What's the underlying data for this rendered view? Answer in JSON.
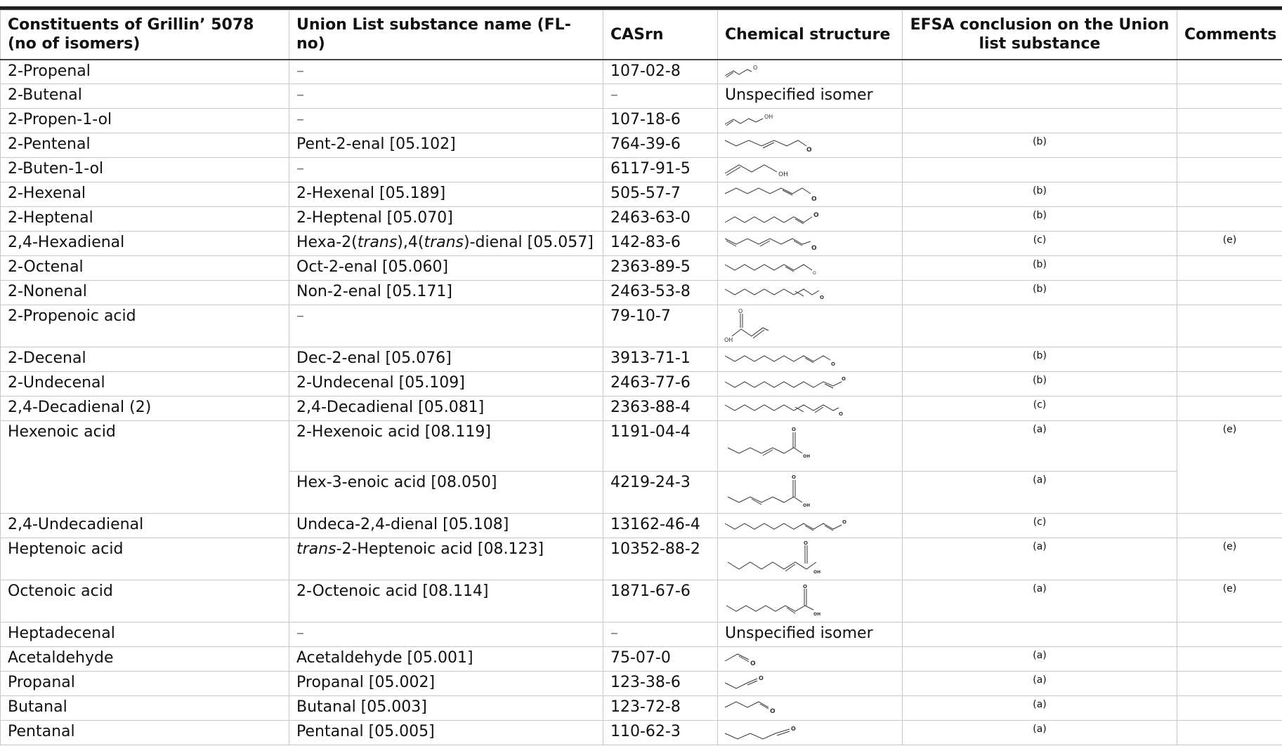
{
  "header": {
    "constituent": "Constituents of Grillin’ 5078 (no of isomers)",
    "union_name": "Union List substance name (FL-no)",
    "casrn": "CASrn",
    "structure": "Chemical structure",
    "efsa": "EFSA conclusion on the Union list substance",
    "comments": "Comments"
  },
  "rows": [
    {
      "constituent": "2-Propenal",
      "union_name": "–",
      "casrn": "107-02-8",
      "structure_text": "",
      "efsa": "",
      "comment": ""
    },
    {
      "constituent": "2-Butenal",
      "union_name": "–",
      "casrn": "–",
      "structure_text": "Unspecified isomer",
      "efsa": "",
      "comment": ""
    },
    {
      "constituent": "2-Propen-1-ol",
      "union_name": "–",
      "casrn": "107-18-6",
      "structure_text": "",
      "efsa": "",
      "comment": ""
    },
    {
      "constituent": "2-Pentenal",
      "union_name": "Pent-2-enal [05.102]",
      "casrn": "764-39-6",
      "structure_text": "",
      "efsa": "(b)",
      "comment": ""
    },
    {
      "constituent": "2-Buten-1-ol",
      "union_name": "–",
      "casrn": "6117-91-5",
      "structure_text": "",
      "efsa": "",
      "comment": ""
    },
    {
      "constituent": "2-Hexenal",
      "union_name": "2-Hexenal [05.189]",
      "casrn": "505-57-7",
      "structure_text": "",
      "efsa": "(b)",
      "comment": ""
    },
    {
      "constituent": "2-Heptenal",
      "union_name": "2-Heptenal [05.070]",
      "casrn": "2463-63-0",
      "structure_text": "",
      "efsa": "(b)",
      "comment": ""
    },
    {
      "constituent": "2,4-Hexadienal",
      "union_name_a": "Hexa-2(",
      "union_name_b": "trans",
      "union_name_c": "),4(",
      "union_name_d": "trans",
      "union_name_e": ")-dienal [05.057]",
      "casrn": "142-83-6",
      "structure_text": "",
      "efsa": "(c)",
      "comment": "(e)"
    },
    {
      "constituent": "2-Octenal",
      "union_name": "Oct-2-enal [05.060]",
      "casrn": "2363-89-5",
      "structure_text": "",
      "efsa": "(b)",
      "comment": ""
    },
    {
      "constituent": "2-Nonenal",
      "union_name": "Non-2-enal [05.171]",
      "casrn": "2463-53-8",
      "structure_text": "",
      "efsa": "(b)",
      "comment": ""
    },
    {
      "constituent": "2-Propenoic acid",
      "union_name": "–",
      "casrn": "79-10-7",
      "structure_text": "",
      "efsa": "",
      "comment": ""
    },
    {
      "constituent": "2-Decenal",
      "union_name": "Dec-2-enal [05.076]",
      "casrn": "3913-71-1",
      "structure_text": "",
      "efsa": "(b)",
      "comment": ""
    },
    {
      "constituent": "2-Undecenal",
      "union_name": "2-Undecenal [05.109]",
      "casrn": "2463-77-6",
      "structure_text": "",
      "efsa": "(b)",
      "comment": ""
    },
    {
      "constituent": "2,4-Decadienal (2)",
      "union_name": "2,4-Decadienal [05.081]",
      "casrn": "2363-88-4",
      "structure_text": "",
      "efsa": "(c)",
      "comment": ""
    },
    {
      "constituent": "Hexenoic acid",
      "union_name": "2-Hexenoic acid [08.119]",
      "casrn": "1191-04-4",
      "structure_text": "",
      "efsa": "(a)",
      "comment": "(e)"
    },
    {
      "constituent": "",
      "union_name": "Hex-3-enoic acid [08.050]",
      "casrn": "4219-24-3",
      "structure_text": "",
      "efsa": "(a)",
      "comment": ""
    },
    {
      "constituent": "2,4-Undecadienal",
      "union_name": "Undeca-2,4-dienal [05.108]",
      "casrn": "13162-46-4",
      "structure_text": "",
      "efsa": "(c)",
      "comment": ""
    },
    {
      "constituent": "Heptenoic acid",
      "union_name_a": "trans",
      "union_name_b": "-2-Heptenoic acid [08.123]",
      "casrn": "10352-88-2",
      "structure_text": "",
      "efsa": "(a)",
      "comment": "(e)"
    },
    {
      "constituent": "Octenoic acid",
      "union_name": "2-Octenoic acid [08.114]",
      "casrn": "1871-67-6",
      "structure_text": "",
      "efsa": "(a)",
      "comment": "(e)"
    },
    {
      "constituent": "Heptadecenal",
      "union_name": "–",
      "casrn": "–",
      "structure_text": "Unspecified isomer",
      "efsa": "",
      "comment": ""
    },
    {
      "constituent": "Acetaldehyde",
      "union_name": "Acetaldehyde [05.001]",
      "casrn": "75-07-0",
      "structure_text": "",
      "efsa": "(a)",
      "comment": ""
    },
    {
      "constituent": "Propanal",
      "union_name": "Propanal [05.002]",
      "casrn": "123-38-6",
      "structure_text": "",
      "efsa": "(a)",
      "comment": ""
    },
    {
      "constituent": "Butanal",
      "union_name": "Butanal [05.003]",
      "casrn": "123-72-8",
      "structure_text": "",
      "efsa": "(a)",
      "comment": ""
    },
    {
      "constituent": "Pentanal",
      "union_name": "Pentanal [05.005]",
      "casrn": "110-62-3",
      "structure_text": "",
      "efsa": "(a)",
      "comment": ""
    }
  ],
  "structure_labels": {
    "o": "O",
    "oh": "OH"
  }
}
